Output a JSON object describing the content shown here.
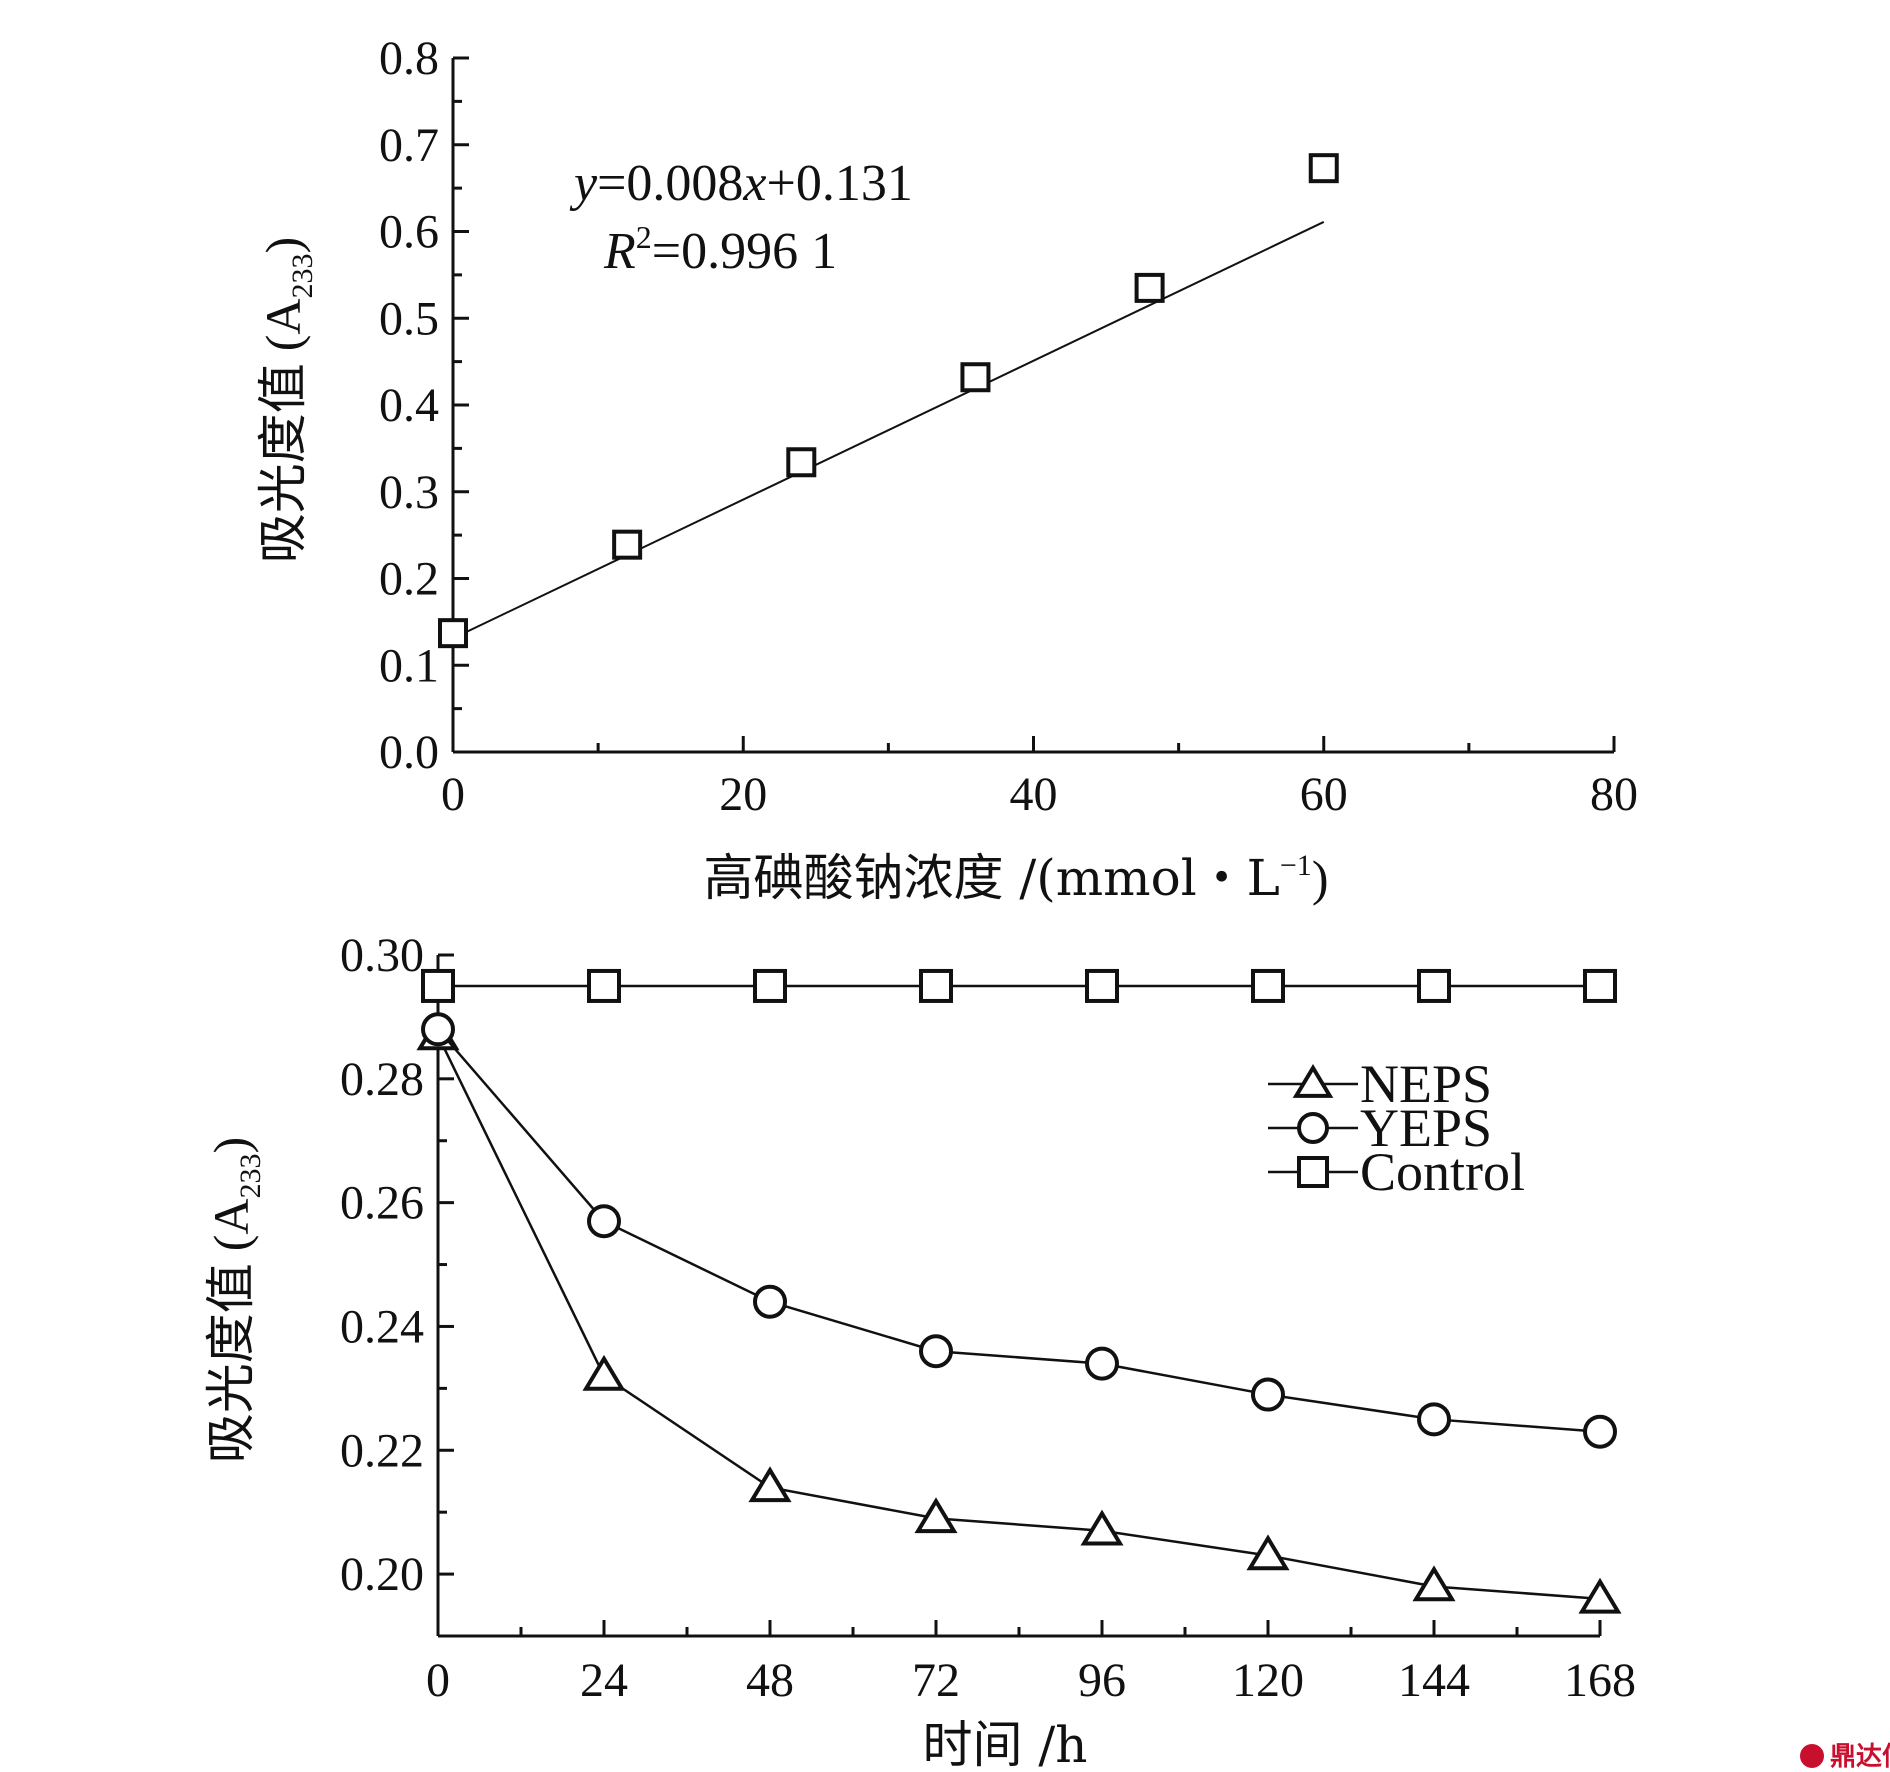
{
  "chart_data": [
    {
      "type": "scatter",
      "name": "calibration",
      "ylabel": "吸光度值",
      "ylabel_unit": "(A",
      "ylabel_sub": "233",
      "ylabel_close": ")",
      "xlabel": "高碘酸钠浓度 /(mmol・L",
      "xlabel_sup": "−1",
      "xlabel_close": ")",
      "xlim": [
        0,
        80
      ],
      "ylim": [
        0.0,
        0.8
      ],
      "x_ticks": [
        "0",
        "20",
        "40",
        "60",
        "80"
      ],
      "y_ticks": [
        "0.0",
        "0.1",
        "0.2",
        "0.3",
        "0.4",
        "0.5",
        "0.6",
        "0.7",
        "0.8"
      ],
      "points": {
        "x": [
          0,
          12,
          24,
          36,
          48,
          60
        ],
        "y": [
          0.137,
          0.239,
          0.334,
          0.432,
          0.535,
          0.673
        ]
      },
      "fit": {
        "slope": 0.008,
        "intercept": 0.131,
        "x_range": [
          0,
          60
        ]
      },
      "equation": {
        "y_var": "y",
        "y_rest": "=0.008",
        "x_var": "x",
        "x_rest": "+0.131",
        "r_var": "R",
        "r_sup": "2",
        "r_rest": "=0.996 1"
      },
      "marker": "square",
      "grid": false
    },
    {
      "type": "line",
      "name": "time-course",
      "ylabel": "吸光度值",
      "ylabel_unit": "(A",
      "ylabel_sub": "233",
      "ylabel_close": ")",
      "xlabel": "时间 /h",
      "xlim": [
        0,
        168
      ],
      "ylim": [
        0.19,
        0.3
      ],
      "x_ticks": [
        "0",
        "24",
        "48",
        "72",
        "96",
        "120",
        "144",
        "168"
      ],
      "y_ticks": [
        "0.20",
        "0.22",
        "0.24",
        "0.26",
        "0.28",
        "0.30"
      ],
      "x": [
        0,
        24,
        48,
        72,
        96,
        120,
        144,
        168
      ],
      "series": [
        {
          "name": "NEPS",
          "marker": "triangle",
          "values": [
            0.287,
            0.232,
            0.214,
            0.209,
            0.207,
            0.203,
            0.198,
            0.196
          ]
        },
        {
          "name": "YEPS",
          "marker": "circle",
          "values": [
            0.288,
            0.257,
            0.244,
            0.236,
            0.234,
            0.229,
            0.225,
            0.223
          ]
        },
        {
          "name": "Control",
          "marker": "square",
          "values": [
            0.295,
            0.295,
            0.295,
            0.295,
            0.295,
            0.295,
            0.295,
            0.295
          ]
        }
      ],
      "legend_placement": "right",
      "grid": false
    }
  ],
  "watermark": {
    "icon": "ddx-logo-icon",
    "text": "鼎达信",
    "color": "#c8102e"
  }
}
